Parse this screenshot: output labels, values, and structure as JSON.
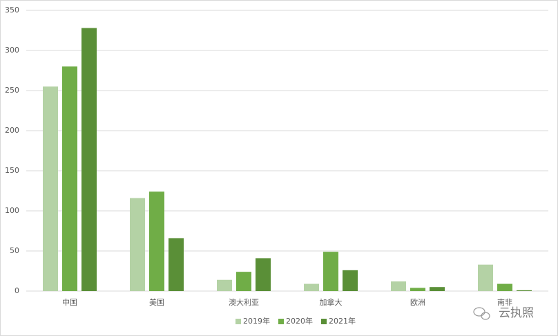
{
  "chart_data": {
    "type": "bar",
    "categories": [
      "中国",
      "美国",
      "澳大利亚",
      "加拿大",
      "欧洲",
      "南非"
    ],
    "series": [
      {
        "name": "2019年",
        "color": "#b4d2a5",
        "values": [
          255,
          116,
          14,
          9,
          12,
          33
        ]
      },
      {
        "name": "2020年",
        "color": "#70ad47",
        "values": [
          280,
          124,
          24,
          49,
          4,
          9
        ]
      },
      {
        "name": "2021年",
        "color": "#5a8f37",
        "values": [
          328,
          66,
          41,
          26,
          5,
          1
        ]
      }
    ],
    "ylim": [
      0,
      350
    ],
    "yticks": [
      0,
      50,
      100,
      150,
      200,
      250,
      300,
      350
    ],
    "grid": true,
    "legend": "bottom",
    "watermark": "云执照"
  }
}
